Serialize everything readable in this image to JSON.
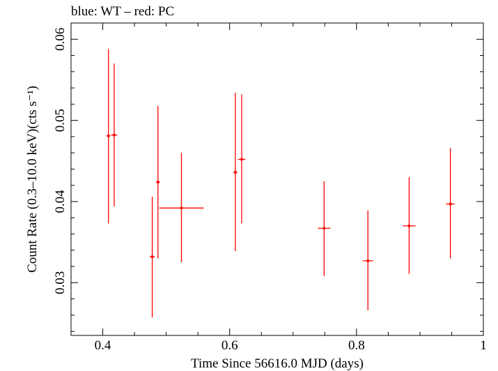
{
  "chart_data": {
    "type": "scatter",
    "title": "blue: WT – red: PC",
    "xlabel": "Time Since 56616.0 MJD (days)",
    "ylabel": "Count Rate (0.3–10.0 keV)(cts s⁻¹)",
    "xlim": [
      0.35,
      1.0
    ],
    "ylim": [
      0.0235,
      0.062
    ],
    "x_ticks": [
      0.4,
      0.6,
      0.8,
      1.0
    ],
    "x_tick_labels": [
      "0.4",
      "0.6",
      "0.8",
      "1"
    ],
    "y_ticks": [
      0.03,
      0.04,
      0.05,
      0.06
    ],
    "y_tick_labels": [
      "0.03",
      "0.04",
      "0.05",
      "0.06"
    ],
    "grid": false,
    "series": [
      {
        "color": "#ff0000",
        "points": [
          {
            "x": 0.409,
            "xerr": 0.003,
            "y": 0.0481,
            "ylo": 0.0373,
            "yhi": 0.0588
          },
          {
            "x": 0.418,
            "xerr": 0.005,
            "y": 0.0482,
            "ylo": 0.0394,
            "yhi": 0.057
          },
          {
            "x": 0.478,
            "xerr": 0.004,
            "y": 0.0332,
            "ylo": 0.0257,
            "yhi": 0.0406
          },
          {
            "x": 0.487,
            "xerr": 0.003,
            "y": 0.0424,
            "ylo": 0.033,
            "yhi": 0.0518
          },
          {
            "x": 0.524,
            "xerr": 0.035,
            "y": 0.0392,
            "ylo": 0.0325,
            "yhi": 0.046
          },
          {
            "x": 0.609,
            "xerr": 0.003,
            "y": 0.0436,
            "ylo": 0.0339,
            "yhi": 0.0534
          },
          {
            "x": 0.619,
            "xerr": 0.006,
            "y": 0.0452,
            "ylo": 0.0373,
            "yhi": 0.0532
          },
          {
            "x": 0.749,
            "xerr": 0.01,
            "y": 0.0367,
            "ylo": 0.0308,
            "yhi": 0.0425
          },
          {
            "x": 0.818,
            "xerr": 0.008,
            "y": 0.0327,
            "ylo": 0.0266,
            "yhi": 0.0389
          },
          {
            "x": 0.883,
            "xerr": 0.01,
            "y": 0.037,
            "ylo": 0.0311,
            "yhi": 0.043
          },
          {
            "x": 0.948,
            "xerr": 0.007,
            "y": 0.0397,
            "ylo": 0.033,
            "yhi": 0.0466
          }
        ]
      }
    ]
  }
}
